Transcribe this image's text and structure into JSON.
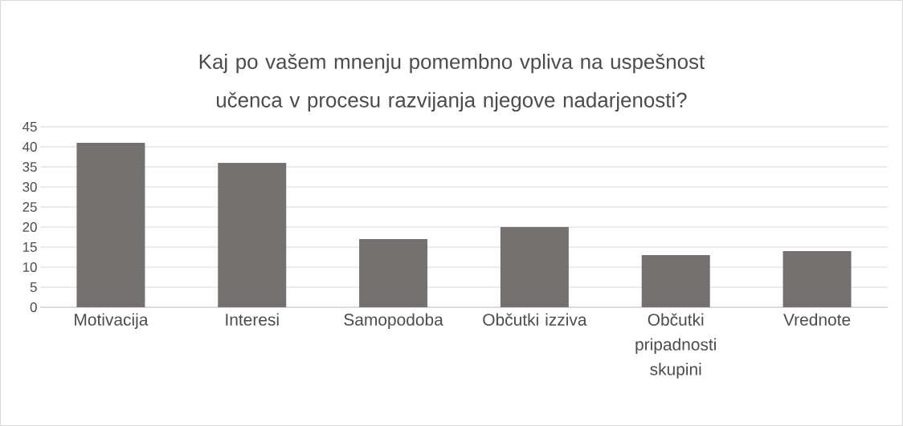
{
  "chart_data": {
    "type": "bar",
    "title": "Kaj po vašem mnenju pomembno vpliva na uspešnost učenca v procesu razvijanja njegove nadarjenosti?",
    "categories": [
      "Motivacija",
      "Interesi",
      "Samopodoba",
      "Občutki izziva",
      "Občutki pripadnosti skupini",
      "Vrednote"
    ],
    "values": [
      41,
      36,
      17,
      20,
      13,
      14
    ],
    "color": "#767171",
    "ylim": [
      0,
      45
    ],
    "yticks": [
      0,
      5,
      10,
      15,
      20,
      25,
      30,
      35,
      40,
      45
    ],
    "grid": "y"
  }
}
